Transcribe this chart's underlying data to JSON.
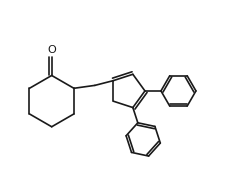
{
  "bg_color": "#ffffff",
  "line_color": "#1a1a1a",
  "line_width": 1.2,
  "figsize": [
    2.52,
    1.76
  ],
  "dpi": 100
}
